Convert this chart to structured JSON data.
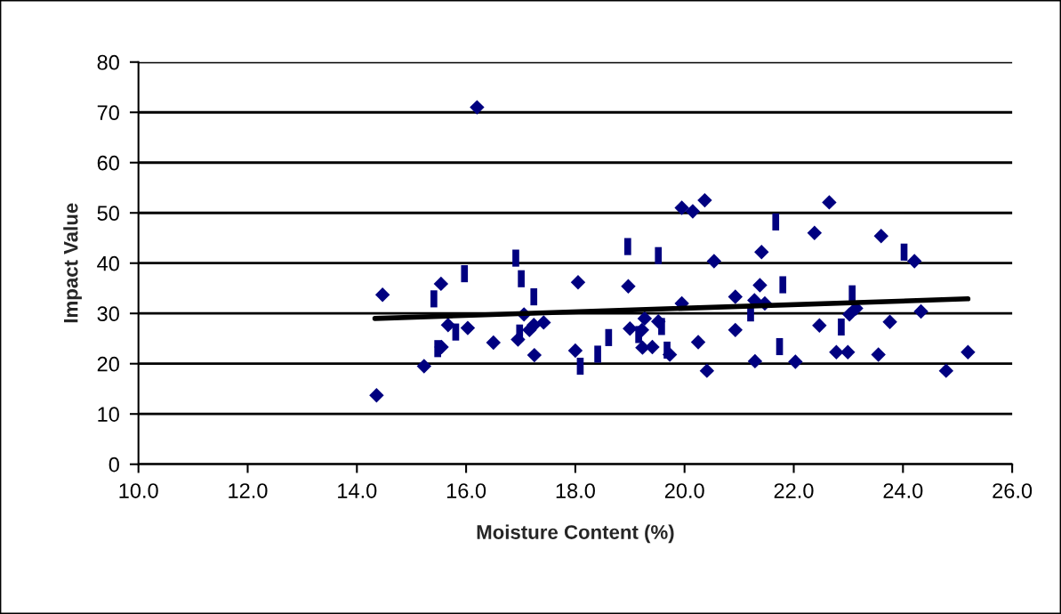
{
  "chart_data": {
    "type": "scatter",
    "xlabel": "Moisture Content (%)",
    "ylabel": "Impact Value",
    "xlim": [
      10,
      26
    ],
    "xticks": [
      {
        "value": 10,
        "label": "10.0"
      },
      {
        "value": 12,
        "label": "12.0"
      },
      {
        "value": 14,
        "label": "14.0"
      },
      {
        "value": 16,
        "label": "16.0"
      },
      {
        "value": 18,
        "label": "18.0"
      },
      {
        "value": 20,
        "label": "20.0"
      },
      {
        "value": 22,
        "label": "22.0"
      },
      {
        "value": 24,
        "label": "24.0"
      },
      {
        "value": 26,
        "label": "26.0"
      }
    ],
    "ylim": [
      0,
      80
    ],
    "yticks": [
      0,
      10,
      20,
      30,
      40,
      50,
      60,
      70,
      80
    ],
    "grid": "y",
    "legend": false,
    "series": [
      {
        "marker": "diamond",
        "color": "#000080",
        "x": [
          14.47,
          14.36,
          16.2,
          19.95,
          20.15,
          20.37,
          15.54,
          18.05,
          18.97,
          19.95,
          17.06,
          15.67,
          16.03,
          16.5,
          16.95,
          17.16,
          17.24,
          17.42,
          17.25,
          18.0,
          15.55,
          15.23,
          19.0,
          19.27,
          19.22,
          19.23,
          19.41,
          19.52,
          19.73,
          20.25,
          20.41,
          22.65,
          22.38,
          23.6,
          21.41,
          20.54,
          24.21,
          21.38,
          20.93,
          21.28,
          21.47,
          23.02,
          23.14,
          24.33,
          22.47,
          23.76,
          20.93,
          21.29,
          22.03,
          22.78,
          22.99,
          23.55,
          24.79,
          25.19
        ],
        "values": [
          33.7,
          13.7,
          71.0,
          51.0,
          50.3,
          52.5,
          35.9,
          36.2,
          35.4,
          32.0,
          29.8,
          27.7,
          27.1,
          24.2,
          24.8,
          26.7,
          27.7,
          28.2,
          21.7,
          22.6,
          23.3,
          19.5,
          27.0,
          29.0,
          26.7,
          23.2,
          23.3,
          28.4,
          21.8,
          24.3,
          18.6,
          52.1,
          46.0,
          45.4,
          42.2,
          40.4,
          40.4,
          35.6,
          33.3,
          32.6,
          32.0,
          29.8,
          31.0,
          30.4,
          27.6,
          28.3,
          26.7,
          20.5,
          20.4,
          22.3,
          22.3,
          21.8,
          18.6,
          22.3
        ]
      },
      {
        "color": "#000080",
        "x": [
          15.97,
          15.41,
          16.91,
          17.01,
          17.24,
          15.48,
          15.81,
          16.98,
          18.96,
          19.52,
          18.61,
          18.41,
          18.09,
          19.16,
          19.58,
          19.68,
          21.67,
          24.02,
          21.8,
          23.07,
          21.21,
          22.87,
          21.74
        ],
        "marker": "square",
        "values": [
          37.9,
          32.9,
          41.0,
          36.9,
          33.3,
          23.0,
          26.3,
          26.1,
          43.3,
          41.5,
          25.2,
          21.9,
          19.5,
          25.8,
          27.4,
          22.7,
          48.2,
          42.2,
          35.7,
          33.9,
          30.1,
          27.3,
          23.4
        ]
      },
      {
        "type": "line",
        "marker": "none",
        "color": "#000000",
        "x": [
          14.33,
          25.19
        ],
        "values": [
          29.0,
          32.9
        ]
      }
    ]
  }
}
